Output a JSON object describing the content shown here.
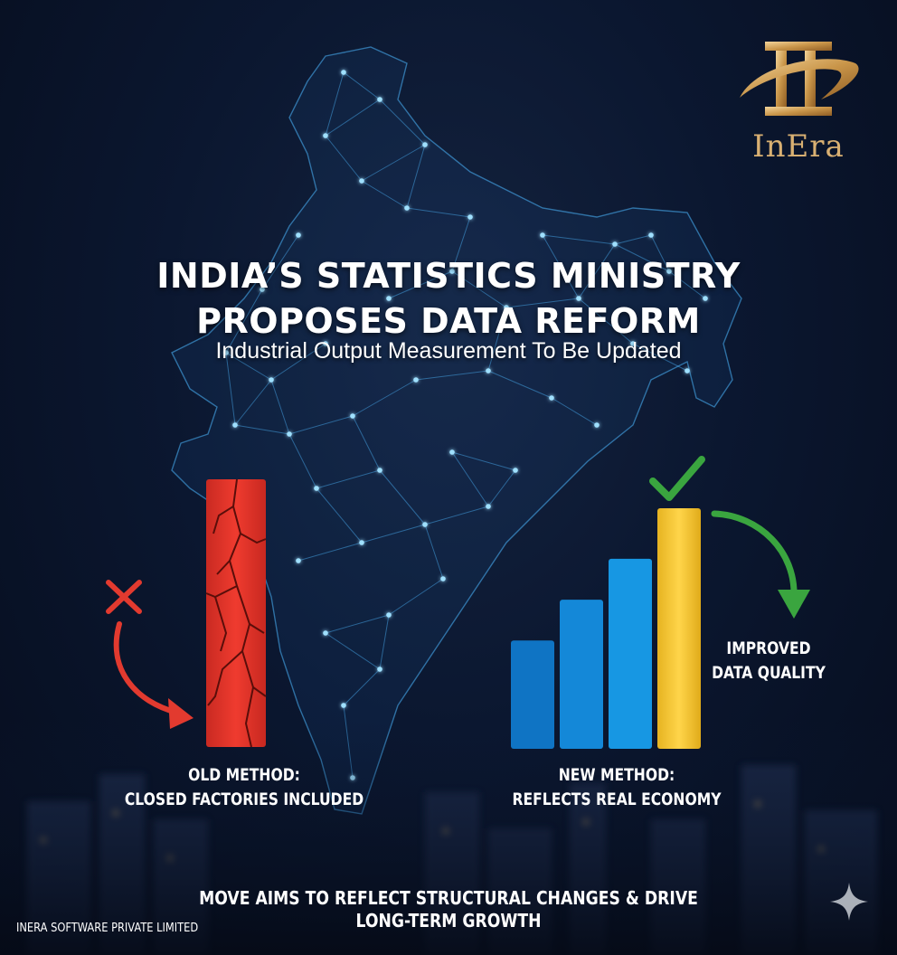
{
  "logo": {
    "text": "InEra",
    "icon": "pillar-swoosh-logo"
  },
  "headline": {
    "line1": "INDIA’S STATISTICS MINISTRY",
    "line2": "PROPOSES DATA REFORM",
    "subtitle": "Industrial Output Measurement To Be Updated"
  },
  "old_method": {
    "line1": "OLD METHOD:",
    "line2": "CLOSED FACTORIES INCLUDED",
    "icon": "x-mark-icon",
    "color": "#e23a2f"
  },
  "new_method": {
    "line1": "NEW METHOD:",
    "line2": "REFLECTS REAL ECONOMY",
    "icon": "checkmark-icon",
    "bar_colors": [
      "#0f74c4",
      "#1488d8",
      "#1797e3",
      "#f3c62e"
    ],
    "bar_levels": [
      0.45,
      0.62,
      0.79,
      1.0
    ]
  },
  "quality": {
    "line1": "IMPROVED",
    "line2": "DATA QUALITY",
    "arrow_color": "#3aa53f"
  },
  "footer": {
    "line1": "MOVE AIMS TO REFLECT STRUCTURAL CHANGES & DRIVE",
    "line2": "LONG-TERM GROWTH",
    "company": "INERA SOFTWARE PRIVATE LIMITED"
  },
  "colors": {
    "background": "#0b1730",
    "network": "#4db8ff",
    "gold": "#d9b072"
  }
}
